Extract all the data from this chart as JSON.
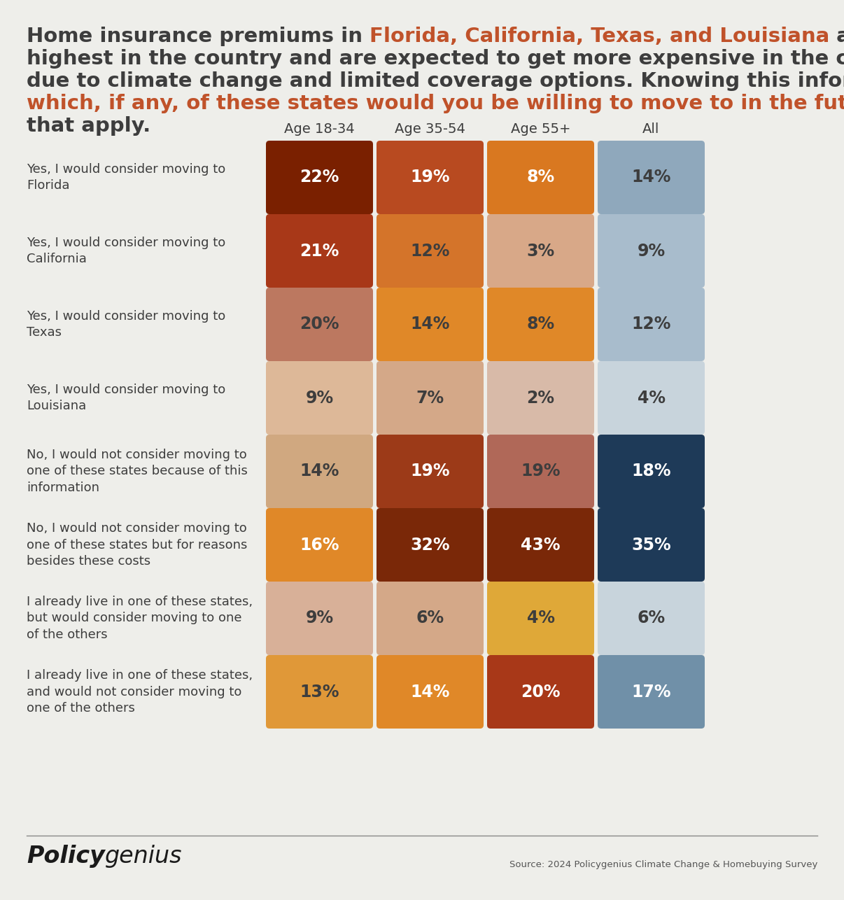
{
  "columns": [
    "Age 18-34",
    "Age 35-54",
    "Age 55+",
    "All"
  ],
  "rows": [
    {
      "label": "Yes, I would consider moving to\nFlorida",
      "values": [
        "22%",
        "19%",
        "8%",
        "14%"
      ],
      "colors": [
        "#7a2000",
        "#b84a20",
        "#d97820",
        "#8fa8bc"
      ],
      "text_colors": [
        "#ffffff",
        "#ffffff",
        "#ffffff",
        "#3d3d3d"
      ]
    },
    {
      "label": "Yes, I would consider moving to\nCalifornia",
      "values": [
        "21%",
        "12%",
        "3%",
        "9%"
      ],
      "colors": [
        "#a83818",
        "#d4742a",
        "#d8a888",
        "#a8bccc"
      ],
      "text_colors": [
        "#ffffff",
        "#3d3d3d",
        "#3d3d3d",
        "#3d3d3d"
      ]
    },
    {
      "label": "Yes, I would consider moving to\nTexas",
      "values": [
        "20%",
        "14%",
        "8%",
        "12%"
      ],
      "colors": [
        "#bc7860",
        "#e08828",
        "#e08828",
        "#a8bccC"
      ],
      "text_colors": [
        "#3d3d3d",
        "#3d3d3d",
        "#3d3d3d",
        "#3d3d3d"
      ]
    },
    {
      "label": "Yes, I would consider moving to\nLouisiana",
      "values": [
        "9%",
        "7%",
        "2%",
        "4%"
      ],
      "colors": [
        "#ddb898",
        "#d4a888",
        "#d8baa8",
        "#c8d4dc"
      ],
      "text_colors": [
        "#3d3d3d",
        "#3d3d3d",
        "#3d3d3d",
        "#3d3d3d"
      ]
    },
    {
      "label": "No, I would not consider moving to\none of these states because of this\ninformation",
      "values": [
        "14%",
        "19%",
        "19%",
        "18%"
      ],
      "colors": [
        "#d0a880",
        "#9c3a18",
        "#b06858",
        "#1e3a58"
      ],
      "text_colors": [
        "#3d3d3d",
        "#ffffff",
        "#3d3d3d",
        "#ffffff"
      ]
    },
    {
      "label": "No, I would not consider moving to\none of these states but for reasons\nbesides these costs",
      "values": [
        "16%",
        "32%",
        "43%",
        "35%"
      ],
      "colors": [
        "#e08828",
        "#7a2808",
        "#7a2808",
        "#1e3a58"
      ],
      "text_colors": [
        "#ffffff",
        "#ffffff",
        "#ffffff",
        "#ffffff"
      ]
    },
    {
      "label": "I already live in one of these states,\nbut would consider moving to one\nof the others",
      "values": [
        "9%",
        "6%",
        "4%",
        "6%"
      ],
      "colors": [
        "#d8b098",
        "#d4a888",
        "#dfa838",
        "#c8d4dc"
      ],
      "text_colors": [
        "#3d3d3d",
        "#3d3d3d",
        "#3d3d3d",
        "#3d3d3d"
      ]
    },
    {
      "label": "I already live in one of these states,\nand would not consider moving to\none of the others",
      "values": [
        "13%",
        "14%",
        "20%",
        "17%"
      ],
      "colors": [
        "#e09838",
        "#e08828",
        "#a83818",
        "#7090a8"
      ],
      "text_colors": [
        "#3d3d3d",
        "#ffffff",
        "#ffffff",
        "#ffffff"
      ]
    }
  ],
  "background_color": "#eeeeea",
  "source_text": "Source: 2024 Policygenius Climate Change & Homebuying Survey",
  "title_fontsize": 21,
  "header_fontsize": 14,
  "label_fontsize": 13,
  "value_fontsize": 17
}
